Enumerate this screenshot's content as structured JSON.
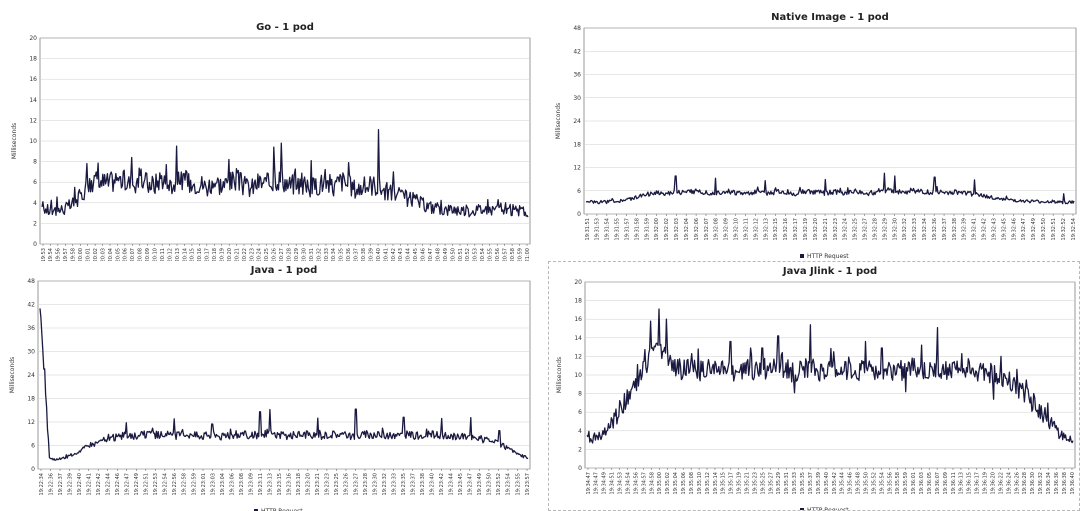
{
  "chart_data": [
    {
      "id": "go",
      "type": "line",
      "title": "Go - 1 pod",
      "ylabel": "Milliseconds",
      "xlabel": "",
      "ylim": [
        0,
        20
      ],
      "yticks": [
        0,
        2,
        4,
        6,
        8,
        10,
        12,
        14,
        16,
        18,
        20
      ],
      "grid": true,
      "legend": "",
      "x": [
        "19:19:53",
        "19:19:54",
        "19:19:56",
        "19:19:57",
        "19:19:58",
        "19:20:00",
        "19:20:01",
        "19:20:02",
        "19:20:03",
        "19:20:04",
        "19:20:05",
        "19:20:06",
        "19:20:07",
        "19:20:08",
        "19:20:09",
        "19:20:10",
        "19:20:11",
        "19:20:12",
        "19:20:13",
        "19:20:14",
        "19:20:15",
        "19:20:16",
        "19:20:17",
        "19:20:18",
        "19:20:19",
        "19:20:20",
        "19:20:21",
        "19:20:22",
        "19:20:23",
        "19:20:24",
        "19:20:25",
        "19:20:26",
        "19:20:27",
        "19:20:28",
        "19:20:29",
        "19:20:30",
        "19:20:31",
        "19:20:32",
        "19:20:33",
        "19:20:34",
        "19:20:35",
        "19:20:36",
        "19:20:37",
        "19:20:38",
        "19:20:39",
        "19:20:40",
        "19:20:41",
        "19:20:42",
        "19:20:43",
        "19:20:44",
        "19:20:45",
        "19:20:46",
        "19:20:47",
        "19:20:48",
        "19:20:49",
        "19:20:50",
        "19:20:51",
        "19:20:52",
        "19:20:53",
        "19:20:54",
        "19:20:55",
        "19:20:56",
        "19:20:57",
        "19:20:58",
        "19:20:59",
        "19:21:00"
      ],
      "series": [
        {
          "name": "",
          "color": "#1a1a40",
          "values": [
            3.6,
            3.2,
            3.3,
            3.4,
            3.8,
            4.5,
            5.6,
            6.2,
            6.0,
            5.9,
            6.4,
            6.1,
            5.8,
            6.3,
            6.0,
            5.7,
            6.5,
            5.6,
            5.9,
            6.2,
            5.8,
            6.0,
            5.5,
            6.1,
            5.7,
            5.9,
            6.3,
            5.6,
            5.4,
            6.0,
            5.8,
            6.1,
            6.4,
            5.7,
            5.9,
            5.6,
            5.4,
            5.8,
            6.0,
            5.5,
            6.2,
            5.7,
            5.3,
            5.5,
            5.8,
            5.6,
            5.1,
            4.9,
            4.6,
            4.4,
            4.2,
            3.8,
            3.6,
            3.4,
            3.3,
            3.4,
            3.3,
            3.2,
            3.3,
            3.4,
            3.3,
            3.5,
            3.2,
            3.3,
            3.1,
            3.0
          ],
          "spikes": [
            [
              6,
              7.8
            ],
            [
              12,
              8.4
            ],
            [
              18,
              9.5
            ],
            [
              25,
              8.2
            ],
            [
              31,
              9.4
            ],
            [
              32,
              9.8
            ],
            [
              36,
              8.1
            ],
            [
              41,
              7.9
            ],
            [
              45,
              11.1
            ],
            [
              47,
              7.0
            ],
            [
              61,
              4.3
            ]
          ]
        }
      ]
    },
    {
      "id": "native",
      "type": "line",
      "title": "Native Image - 1 pod",
      "ylabel": "Milliseconds",
      "xlabel": "",
      "ylim": [
        0,
        48
      ],
      "yticks": [
        0,
        6,
        12,
        18,
        24,
        30,
        36,
        42,
        48
      ],
      "grid": true,
      "legend": "bottom-center",
      "x": [
        "19:31:51",
        "19:31:53",
        "19:31:54",
        "19:31:55",
        "19:31:57",
        "19:31:58",
        "19:31:59",
        "19:32:00",
        "19:32:02",
        "19:32:03",
        "19:32:04",
        "19:32:06",
        "19:32:07",
        "19:32:08",
        "19:32:09",
        "19:32:10",
        "19:32:11",
        "19:32:12",
        "19:32:13",
        "19:32:15",
        "19:32:16",
        "19:32:17",
        "19:32:19",
        "19:32:20",
        "19:32:21",
        "19:32:23",
        "19:32:24",
        "19:32:25",
        "19:32:27",
        "19:32:28",
        "19:32:29",
        "19:32:30",
        "19:32:32",
        "19:32:33",
        "19:32:34",
        "19:32:36",
        "19:32:37",
        "19:32:38",
        "19:32:39",
        "19:32:41",
        "19:32:42",
        "19:32:43",
        "19:32:45",
        "19:32:46",
        "19:32:47",
        "19:32:49",
        "19:32:50",
        "19:32:51",
        "19:32:52",
        "19:32:54"
      ],
      "series": [
        {
          "name": "HTTP Request",
          "color": "#1a1a40",
          "values": [
            3.2,
            3.0,
            3.1,
            3.3,
            3.6,
            4.2,
            5.0,
            5.6,
            5.3,
            5.8,
            5.5,
            6.0,
            5.6,
            5.4,
            5.9,
            5.5,
            5.2,
            5.7,
            5.4,
            5.6,
            5.8,
            5.3,
            5.9,
            5.6,
            5.4,
            5.7,
            5.5,
            5.8,
            5.3,
            5.6,
            6.2,
            5.9,
            5.7,
            6.1,
            5.5,
            5.8,
            5.4,
            5.6,
            5.3,
            5.1,
            4.6,
            4.2,
            3.8,
            3.5,
            3.3,
            3.2,
            3.1,
            3.2,
            3.0,
            3.0
          ],
          "spikes": [
            [
              9,
              9.8
            ],
            [
              13,
              9.2
            ],
            [
              18,
              8.6
            ],
            [
              24,
              8.9
            ],
            [
              30,
              10.5
            ],
            [
              31,
              9.8
            ],
            [
              35,
              9.5
            ],
            [
              39,
              8.8
            ],
            [
              48,
              5.2
            ]
          ]
        }
      ]
    },
    {
      "id": "java",
      "type": "line",
      "title": "Java - 1 pod",
      "ylabel": "Milliseconds",
      "xlabel": "",
      "ylim": [
        0,
        48
      ],
      "yticks": [
        0,
        6,
        12,
        18,
        24,
        30,
        36,
        42,
        48
      ],
      "grid": true,
      "legend": "bottom-center",
      "x": [
        "19:22:34",
        "19:22:36",
        "19:22:37",
        "19:22:39",
        "19:22:40",
        "19:22:41",
        "19:22:42",
        "19:22:44",
        "19:22:46",
        "19:22:47",
        "19:22:49",
        "19:22:51",
        "19:22:53",
        "19:22:54",
        "19:22:56",
        "19:22:58",
        "19:22:59",
        "19:23:01",
        "19:23:03",
        "19:23:04",
        "19:23:06",
        "19:23:08",
        "19:23:09",
        "19:23:11",
        "19:23:13",
        "19:23:15",
        "19:23:16",
        "19:23:18",
        "19:23:20",
        "19:23:21",
        "19:23:23",
        "19:23:25",
        "19:23:26",
        "19:23:27",
        "19:23:28",
        "19:23:30",
        "19:23:32",
        "19:23:33",
        "19:23:35",
        "19:23:37",
        "19:23:38",
        "19:23:40",
        "19:23:42",
        "19:23:44",
        "19:23:45",
        "19:23:47",
        "19:23:49",
        "19:23:50",
        "19:23:52",
        "19:23:54",
        "19:23:55",
        "19:23:57"
      ],
      "series": [
        {
          "name": "HTTP Request",
          "color": "#1a1a40",
          "values": [
            41.0,
            2.5,
            2.3,
            3.2,
            4.5,
            5.8,
            6.8,
            7.6,
            8.2,
            8.5,
            8.3,
            8.8,
            8.6,
            8.9,
            8.4,
            9.1,
            8.7,
            8.5,
            8.9,
            8.3,
            8.6,
            9.0,
            8.5,
            8.8,
            9.2,
            8.6,
            8.4,
            8.9,
            8.7,
            8.3,
            8.8,
            9.0,
            8.6,
            8.4,
            8.9,
            8.5,
            8.7,
            8.3,
            8.8,
            8.6,
            8.4,
            8.9,
            8.5,
            8.2,
            8.6,
            8.0,
            7.6,
            7.2,
            6.4,
            5.2,
            3.8,
            2.6
          ],
          "spikes": [
            [
              9,
              11.8
            ],
            [
              14,
              12.8
            ],
            [
              18,
              11.5
            ],
            [
              23,
              14.6
            ],
            [
              24,
              15.2
            ],
            [
              29,
              13.0
            ],
            [
              33,
              15.3
            ],
            [
              38,
              13.2
            ],
            [
              42,
              12.9
            ],
            [
              45,
              13.1
            ],
            [
              48,
              9.8
            ]
          ]
        }
      ]
    },
    {
      "id": "jlink",
      "type": "line",
      "title": "Java Jlink - 1 pod",
      "ylabel": "Milliseconds",
      "xlabel": "",
      "ylim": [
        0,
        20
      ],
      "yticks": [
        0,
        2,
        4,
        6,
        8,
        10,
        12,
        14,
        16,
        18,
        20
      ],
      "grid": true,
      "legend": "bottom-center",
      "x": [
        "19:34:47",
        "19:34:47",
        "19:34:49",
        "19:34:51",
        "19:34:53",
        "19:34:54",
        "19:34:56",
        "19:34:57",
        "19:34:58",
        "19:35:00",
        "19:35:02",
        "19:35:04",
        "19:35:06",
        "19:35:08",
        "19:35:10",
        "19:35:12",
        "19:35:14",
        "19:35:15",
        "19:35:17",
        "19:35:19",
        "19:35:21",
        "19:35:23",
        "19:35:25",
        "19:35:27",
        "19:35:29",
        "19:35:31",
        "19:35:33",
        "19:35:35",
        "19:35:37",
        "19:35:39",
        "19:35:40",
        "19:35:42",
        "19:35:44",
        "19:35:46",
        "19:35:48",
        "19:35:50",
        "19:35:52",
        "19:35:54",
        "19:35:56",
        "19:35:58",
        "19:35:59",
        "19:36:01",
        "19:36:03",
        "19:36:05",
        "19:36:07",
        "19:36:09",
        "19:36:11",
        "19:36:13",
        "19:36:15",
        "19:36:17",
        "19:36:19",
        "19:36:20",
        "19:36:22",
        "19:36:24",
        "19:36:26",
        "19:36:28",
        "19:36:30",
        "19:36:32",
        "19:36:34",
        "19:36:36",
        "19:36:38",
        "19:36:40"
      ],
      "series": [
        {
          "name": "HTTP Request",
          "color": "#1a1a40",
          "values": [
            3.5,
            3.2,
            3.4,
            4.6,
            6.0,
            7.6,
            9.0,
            10.4,
            12.2,
            12.6,
            12.0,
            10.8,
            10.5,
            10.9,
            10.3,
            10.7,
            10.4,
            10.9,
            10.6,
            10.2,
            10.8,
            10.5,
            10.3,
            10.9,
            10.4,
            10.7,
            10.2,
            10.6,
            10.8,
            10.3,
            10.5,
            10.9,
            10.4,
            10.6,
            10.2,
            10.8,
            10.5,
            10.7,
            10.3,
            10.6,
            10.4,
            10.9,
            10.5,
            10.2,
            10.7,
            10.6,
            10.4,
            10.5,
            10.8,
            10.4,
            10.3,
            10.2,
            9.9,
            9.4,
            8.6,
            7.8,
            7.0,
            6.0,
            5.0,
            4.0,
            3.2,
            3.0
          ],
          "spikes": [
            [
              5,
              8.4
            ],
            [
              8,
              15.8
            ],
            [
              9,
              17.1
            ],
            [
              10,
              16.0
            ],
            [
              14,
              12.8
            ],
            [
              18,
              13.6
            ],
            [
              22,
              12.9
            ],
            [
              24,
              14.2
            ],
            [
              26,
              8.1
            ],
            [
              28,
              15.4
            ],
            [
              31,
              12.5
            ],
            [
              35,
              13.6
            ],
            [
              37,
              12.9
            ],
            [
              40,
              8.2
            ],
            [
              42,
              13.2
            ],
            [
              44,
              15.1
            ],
            [
              47,
              12.3
            ],
            [
              51,
              7.4
            ],
            [
              52,
              12.0
            ],
            [
              54,
              10.6
            ]
          ]
        }
      ]
    }
  ]
}
